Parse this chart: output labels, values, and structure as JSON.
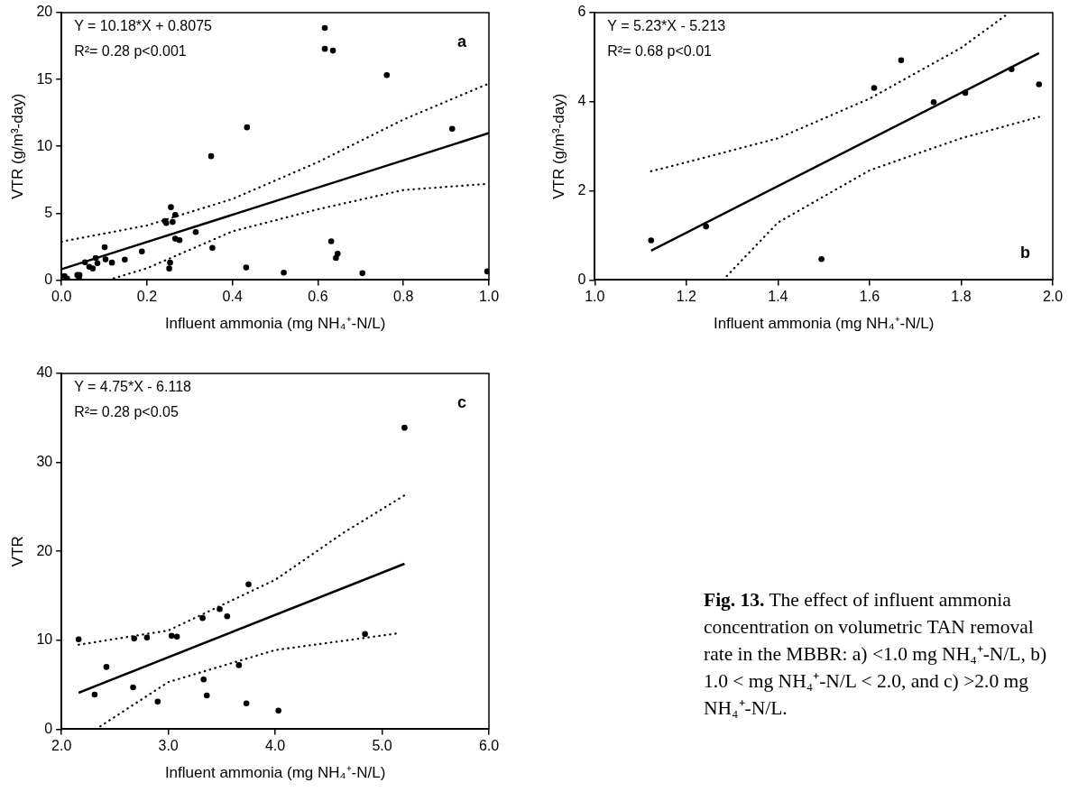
{
  "chart_data": [
    {
      "type": "scatter",
      "title": "a",
      "xlabel": "Influent ammonia (mg NH₄⁺-N/L)",
      "ylabel": "VTR (g/m³-day)",
      "annotations": [
        "Y = 10.18*X + 0.8075",
        "R²= 0.28 p<0.001"
      ],
      "xlim": [
        0,
        1
      ],
      "ylim": [
        0,
        20
      ],
      "xticks": [
        {
          "value": 0,
          "label": "0.0"
        },
        {
          "value": 0.2,
          "label": "0.2"
        },
        {
          "value": 0.4,
          "label": "0.4"
        },
        {
          "value": 0.6,
          "label": "0.6"
        },
        {
          "value": 0.8,
          "label": "0.8"
        },
        {
          "value": 1,
          "label": "1.0"
        }
      ],
      "yticks": [
        0,
        5,
        10,
        15,
        20
      ],
      "series": [
        {
          "type": "scatter",
          "marker": "circle",
          "color": "#000000",
          "x": [
            0.007,
            0.013,
            0.037,
            0.042,
            0.041,
            0.055,
            0.065,
            0.073,
            0.08,
            0.084,
            0.101,
            0.103,
            0.118,
            0.148,
            0.188,
            0.245,
            0.242,
            0.26,
            0.256,
            0.266,
            0.254,
            0.252,
            0.266,
            0.276,
            0.314,
            0.35,
            0.353,
            0.434,
            0.432,
            0.52,
            0.616,
            0.616,
            0.635,
            0.631,
            0.642,
            0.646,
            0.704,
            0.761,
            0.914,
            0.996
          ],
          "values": [
            0.29,
            0.11,
            0.37,
            0.37,
            0.11,
            1.32,
            0.99,
            0.86,
            1.65,
            1.26,
            2.45,
            1.54,
            1.3,
            1.52,
            2.14,
            4.26,
            4.41,
            4.34,
            5.45,
            4.87,
            1.3,
            0.86,
            3.09,
            2.98,
            3.59,
            9.26,
            2.4,
            11.42,
            0.93,
            0.55,
            18.85,
            17.29,
            17.16,
            2.89,
            1.65,
            1.96,
            0.51,
            15.33,
            11.31,
            0.64
          ]
        },
        {
          "type": "line",
          "color": "#000000",
          "line_style": "solid",
          "x": [
            0,
            1
          ],
          "values": [
            0.81,
            10.99
          ]
        },
        {
          "type": "line",
          "color": "#000000",
          "line_style": "dotted",
          "x": [
            0,
            0.2,
            0.4,
            0.6,
            0.8,
            1
          ],
          "values": [
            2.87,
            4.08,
            6.06,
            8.82,
            12.0,
            14.7
          ]
        },
        {
          "type": "line",
          "color": "#000000",
          "line_style": "dotted",
          "x": [
            0.11,
            0.2,
            0.4,
            0.6,
            0.8,
            1
          ],
          "values": [
            0,
            0.88,
            3.64,
            5.29,
            6.73,
            7.2
          ]
        }
      ]
    },
    {
      "type": "scatter",
      "title": "b",
      "xlabel": "Influent ammonia (mg NH₄⁺-N/L)",
      "ylabel": "VTR (g/m³-day)",
      "annotations": [
        "Y = 5.23*X - 5.213",
        "R²= 0.68 p<0.01"
      ],
      "xlim": [
        1,
        2
      ],
      "ylim": [
        0,
        6
      ],
      "xticks": [
        {
          "value": 1,
          "label": "1.0"
        },
        {
          "value": 1.2,
          "label": "1.2"
        },
        {
          "value": 1.4,
          "label": "1.4"
        },
        {
          "value": 1.6,
          "label": "1.6"
        },
        {
          "value": 1.8,
          "label": "1.8"
        },
        {
          "value": 2,
          "label": "2.0"
        }
      ],
      "yticks": [
        0,
        2,
        4,
        6
      ],
      "series": [
        {
          "type": "scatter",
          "marker": "circle",
          "color": "#000000",
          "x": [
            1.123,
            1.243,
            1.495,
            1.61,
            1.669,
            1.74,
            1.809,
            1.91,
            1.97
          ],
          "values": [
            0.89,
            1.2,
            0.47,
            4.31,
            4.93,
            3.99,
            4.2,
            4.73,
            4.39
          ]
        },
        {
          "type": "line",
          "color": "#000000",
          "line_style": "solid",
          "x": [
            1.123,
            1.97
          ],
          "values": [
            0.66,
            5.09
          ]
        },
        {
          "type": "line",
          "color": "#000000",
          "line_style": "dotted",
          "x": [
            1.123,
            1.2,
            1.4,
            1.6,
            1.8,
            1.9
          ],
          "values": [
            2.44,
            2.64,
            3.18,
            4.07,
            5.21,
            5.96
          ]
        },
        {
          "type": "line",
          "color": "#000000",
          "line_style": "dotted",
          "x": [
            1.28,
            1.4,
            1.6,
            1.8,
            1.97
          ],
          "values": [
            0,
            1.29,
            2.46,
            3.18,
            3.66
          ]
        }
      ]
    },
    {
      "type": "scatter",
      "title": "c",
      "xlabel": "Influent ammonia (mg NH₄⁺-N/L)",
      "ylabel": "VTR",
      "annotations": [
        "Y = 4.75*X - 6.118",
        "R²= 0.28 p<0.05"
      ],
      "xlim": [
        2,
        6
      ],
      "ylim": [
        0,
        40
      ],
      "xticks": [
        {
          "value": 2,
          "label": "2.0"
        },
        {
          "value": 3,
          "label": "3.0"
        },
        {
          "value": 4,
          "label": "4.0"
        },
        {
          "value": 5,
          "label": "5.0"
        },
        {
          "value": 6,
          "label": "6.0"
        }
      ],
      "yticks": [
        0,
        10,
        20,
        30,
        40
      ],
      "series": [
        {
          "type": "scatter",
          "marker": "circle",
          "color": "#000000",
          "x": [
            2.16,
            2.31,
            2.42,
            2.67,
            2.68,
            2.8,
            2.9,
            3.03,
            3.08,
            3.32,
            3.33,
            3.36,
            3.48,
            3.55,
            3.66,
            3.73,
            3.75,
            4.03,
            4.84,
            5.21
          ],
          "values": [
            10.1,
            3.9,
            7.0,
            4.7,
            10.2,
            10.3,
            3.1,
            10.5,
            10.4,
            12.5,
            5.6,
            3.8,
            13.5,
            12.7,
            7.2,
            2.9,
            16.3,
            2.1,
            10.7,
            33.9
          ]
        },
        {
          "type": "line",
          "color": "#000000",
          "line_style": "solid",
          "x": [
            2.16,
            5.21
          ],
          "values": [
            4.1,
            18.6
          ]
        },
        {
          "type": "line",
          "color": "#000000",
          "line_style": "dotted",
          "x": [
            2.16,
            3,
            4,
            4.64,
            5.21
          ],
          "values": [
            9.5,
            11.1,
            16.8,
            22.1,
            26.3
          ]
        },
        {
          "type": "line",
          "color": "#000000",
          "line_style": "dotted",
          "x": [
            2.32,
            3,
            4,
            5.16
          ],
          "values": [
            0,
            5.3,
            8.9,
            10.8
          ]
        }
      ]
    },
    {
      "type": "other",
      "title": "Fig. 13.",
      "annotations": [
        "The effect of influent ammonia concentration on volumetric TAN removal rate in the MBBR: a) <1.0 mg NH₄⁺-N/L, b) 1.0 < mg NH₄⁺-N/L < 2.0, and c) >2.0 mg NH₄⁺-N/L."
      ]
    }
  ]
}
